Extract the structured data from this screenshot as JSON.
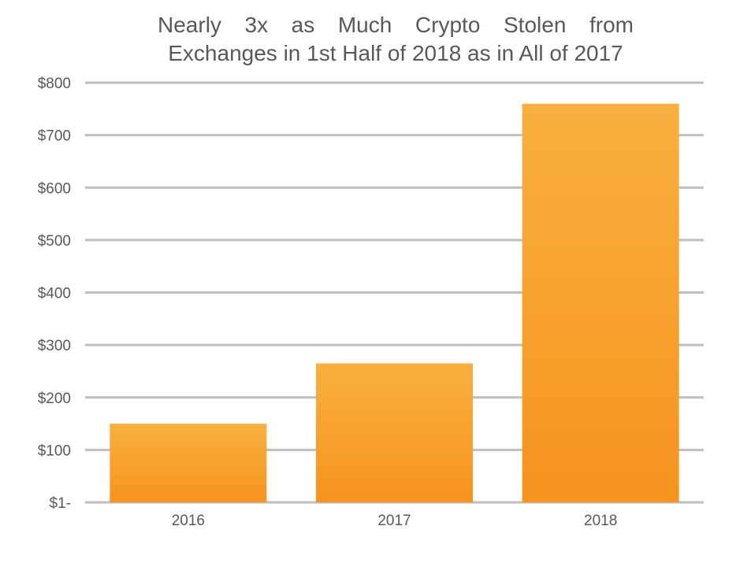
{
  "chart_data": {
    "type": "bar",
    "title_lines": [
      "Nearly 3x as Much Crypto Stolen from",
      "Exchanges in 1st Half of 2018 as in All of 2017"
    ],
    "categories": [
      "2016",
      "2017",
      "2018"
    ],
    "values": [
      150,
      265,
      760
    ],
    "ylim": [
      0,
      800
    ],
    "yticks": [
      0,
      100,
      200,
      300,
      400,
      500,
      600,
      700,
      800
    ],
    "ytick_labels": [
      "$1-",
      "$100",
      "$200",
      "$300",
      "$400",
      "$500",
      "$600",
      "$700",
      "$800"
    ],
    "xlabel": "",
    "ylabel": "",
    "grid": true,
    "legend": "none",
    "colors": {
      "bar_top": "#f9b040",
      "bar_bottom": "#f7931e",
      "grid": "#bfbfbf",
      "text": "#595959"
    }
  }
}
